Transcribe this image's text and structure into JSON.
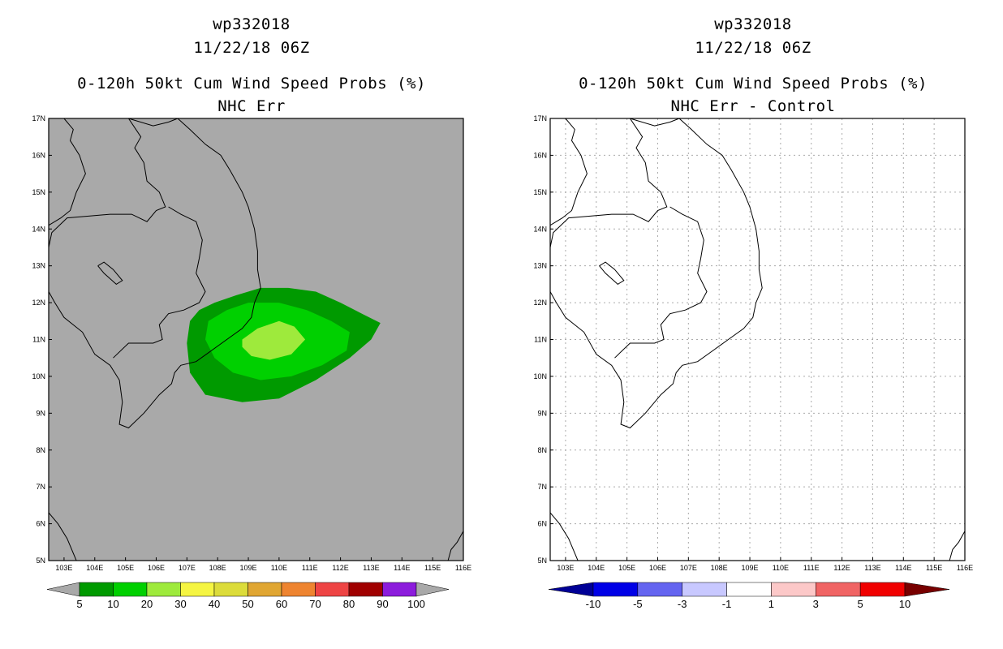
{
  "panels": [
    {
      "id_line": "wp332018",
      "date_line": "11/22/18 06Z",
      "title_line": "0-120h 50kt Cum Wind Speed Probs (%)",
      "subtitle_line": "NHC Err",
      "background": "#a9a9a9"
    },
    {
      "id_line": "wp332018",
      "date_line": "11/22/18 06Z",
      "title_line": "0-120h 50kt Cum Wind Speed Probs (%)",
      "subtitle_line": "NHC Err - Control",
      "background": "#ffffff"
    }
  ],
  "chart_data": [
    {
      "type": "filled-contour-map",
      "title": "0-120h 50kt Cum Wind Speed Probs (%)",
      "subtitle": "NHC Err",
      "xlim": [
        102.5,
        116
      ],
      "ylim": [
        5,
        17
      ],
      "xticks": [
        "103E",
        "104E",
        "105E",
        "106E",
        "107E",
        "108E",
        "109E",
        "110E",
        "111E",
        "112E",
        "113E",
        "114E",
        "115E",
        "116E"
      ],
      "yticks": [
        "5N",
        "6N",
        "7N",
        "8N",
        "9N",
        "10N",
        "11N",
        "12N",
        "13N",
        "14N",
        "15N",
        "16N",
        "17N"
      ],
      "grid": false,
      "contours": [
        {
          "level": 5,
          "color": "#009a00",
          "polygon": [
            [
              107.1,
              11.5
            ],
            [
              107.4,
              11.8
            ],
            [
              107.9,
              12.0
            ],
            [
              108.6,
              12.2
            ],
            [
              109.4,
              12.4
            ],
            [
              110.3,
              12.4
            ],
            [
              111.2,
              12.3
            ],
            [
              112.0,
              12.0
            ],
            [
              112.7,
              11.7
            ],
            [
              113.3,
              11.45
            ],
            [
              113.0,
              11.0
            ],
            [
              112.3,
              10.5
            ],
            [
              111.2,
              9.9
            ],
            [
              110.0,
              9.4
            ],
            [
              108.8,
              9.3
            ],
            [
              107.6,
              9.5
            ],
            [
              107.1,
              10.1
            ],
            [
              107.0,
              10.9
            ]
          ]
        },
        {
          "level": 10,
          "color": "#00d000",
          "polygon": [
            [
              107.7,
              11.5
            ],
            [
              108.3,
              11.8
            ],
            [
              109.0,
              12.0
            ],
            [
              110.0,
              12.0
            ],
            [
              110.9,
              11.8
            ],
            [
              111.7,
              11.5
            ],
            [
              112.3,
              11.2
            ],
            [
              112.2,
              10.7
            ],
            [
              111.4,
              10.3
            ],
            [
              110.4,
              10.0
            ],
            [
              109.4,
              9.9
            ],
            [
              108.5,
              10.1
            ],
            [
              107.9,
              10.5
            ],
            [
              107.6,
              11.0
            ]
          ]
        },
        {
          "level": 20,
          "color": "#9eea3c",
          "polygon": [
            [
              108.8,
              11.0
            ],
            [
              109.3,
              11.3
            ],
            [
              110.0,
              11.5
            ],
            [
              110.5,
              11.35
            ],
            [
              110.85,
              11.0
            ],
            [
              110.4,
              10.6
            ],
            [
              109.7,
              10.45
            ],
            [
              109.1,
              10.55
            ],
            [
              108.8,
              10.8
            ]
          ]
        }
      ],
      "colorbar": {
        "labels": [
          "5",
          "10",
          "20",
          "30",
          "40",
          "50",
          "60",
          "70",
          "80",
          "90",
          "100"
        ],
        "colors": [
          "#009a00",
          "#00d000",
          "#9eea3c",
          "#f5f542",
          "#dcdc3a",
          "#e0a632",
          "#ee8430",
          "#ee4444",
          "#a00000",
          "#8c1cdc"
        ],
        "under_color": "#a9a9a9",
        "over_color": "#a9a9a9"
      }
    },
    {
      "type": "filled-contour-map",
      "title": "0-120h 50kt Cum Wind Speed Probs (%)",
      "subtitle": "NHC Err - Control",
      "xlim": [
        102.5,
        116
      ],
      "ylim": [
        5,
        17
      ],
      "xticks": [
        "103E",
        "104E",
        "105E",
        "106E",
        "107E",
        "108E",
        "109E",
        "110E",
        "111E",
        "112E",
        "113E",
        "114E",
        "115E",
        "116E"
      ],
      "yticks": [
        "5N",
        "6N",
        "7N",
        "8N",
        "9N",
        "10N",
        "11N",
        "12N",
        "13N",
        "14N",
        "15N",
        "16N",
        "17N"
      ],
      "grid": true,
      "contours": [],
      "colorbar": {
        "labels": [
          "-10",
          "-5",
          "-3",
          "-1",
          "1",
          "3",
          "5",
          "10"
        ],
        "colors": [
          "#0000e6",
          "#6464f0",
          "#c8c8ff",
          "#ffffff",
          "#fcc8c8",
          "#f06464",
          "#f00000"
        ],
        "under_color": "#000096",
        "over_color": "#780000"
      }
    }
  ],
  "coastline": [
    [
      [
        103.0,
        17.0
      ],
      [
        103.3,
        16.7
      ],
      [
        103.2,
        16.4
      ],
      [
        103.5,
        16.0
      ],
      [
        103.7,
        15.5
      ],
      [
        103.4,
        15.0
      ],
      [
        103.2,
        14.5
      ],
      [
        102.9,
        14.3
      ],
      [
        102.5,
        14.1
      ]
    ],
    [
      [
        105.1,
        17.0
      ],
      [
        105.5,
        16.5
      ],
      [
        105.3,
        16.2
      ],
      [
        105.6,
        15.8
      ],
      [
        105.7,
        15.3
      ],
      [
        106.1,
        15.0
      ],
      [
        106.3,
        14.6
      ],
      [
        106.0,
        14.5
      ],
      [
        105.7,
        14.2
      ],
      [
        105.2,
        14.4
      ],
      [
        104.5,
        14.4
      ],
      [
        103.8,
        14.35
      ],
      [
        103.1,
        14.3
      ],
      [
        102.6,
        13.9
      ],
      [
        102.5,
        13.5
      ]
    ],
    [
      [
        105.1,
        17.0
      ],
      [
        105.9,
        16.8
      ],
      [
        106.4,
        16.9
      ],
      [
        106.7,
        17.0
      ]
    ],
    [
      [
        106.7,
        17.0
      ],
      [
        107.1,
        16.7
      ],
      [
        107.6,
        16.3
      ],
      [
        108.1,
        16.0
      ],
      [
        108.4,
        15.6
      ],
      [
        108.8,
        15.0
      ],
      [
        109.0,
        14.6
      ],
      [
        109.2,
        14.0
      ],
      [
        109.3,
        13.4
      ],
      [
        109.3,
        12.9
      ],
      [
        109.4,
        12.4
      ],
      [
        109.2,
        12.0
      ],
      [
        109.1,
        11.6
      ],
      [
        108.8,
        11.3
      ],
      [
        108.3,
        11.0
      ],
      [
        107.8,
        10.7
      ],
      [
        107.3,
        10.4
      ],
      [
        106.8,
        10.3
      ],
      [
        106.6,
        10.1
      ],
      [
        106.5,
        9.8
      ],
      [
        106.1,
        9.5
      ],
      [
        105.6,
        9.0
      ],
      [
        105.1,
        8.6
      ],
      [
        104.8,
        8.7
      ],
      [
        104.9,
        9.3
      ],
      [
        104.8,
        9.9
      ],
      [
        104.5,
        10.3
      ],
      [
        104.0,
        10.6
      ],
      [
        103.6,
        11.2
      ],
      [
        103.0,
        11.6
      ],
      [
        102.7,
        12.0
      ],
      [
        102.5,
        12.3
      ]
    ],
    [
      [
        106.4,
        14.6
      ],
      [
        106.8,
        14.4
      ],
      [
        107.3,
        14.2
      ],
      [
        107.5,
        13.7
      ],
      [
        107.4,
        13.2
      ],
      [
        107.3,
        12.8
      ],
      [
        107.6,
        12.3
      ],
      [
        107.4,
        12.0
      ],
      [
        106.9,
        11.8
      ],
      [
        106.4,
        11.7
      ],
      [
        106.1,
        11.4
      ],
      [
        106.2,
        11.0
      ],
      [
        105.9,
        10.9
      ],
      [
        105.1,
        10.9
      ],
      [
        104.6,
        10.5
      ]
    ],
    [
      [
        104.1,
        13.0
      ],
      [
        104.3,
        13.1
      ],
      [
        104.6,
        12.9
      ],
      [
        104.9,
        12.6
      ],
      [
        104.7,
        12.5
      ],
      [
        104.3,
        12.8
      ],
      [
        104.1,
        13.0
      ]
    ],
    [
      [
        102.5,
        6.3
      ],
      [
        102.8,
        6.0
      ],
      [
        103.1,
        5.6
      ],
      [
        103.4,
        5.0
      ]
    ],
    [
      [
        115.5,
        5.0
      ],
      [
        115.6,
        5.3
      ],
      [
        115.8,
        5.5
      ],
      [
        116.0,
        5.8
      ]
    ]
  ]
}
